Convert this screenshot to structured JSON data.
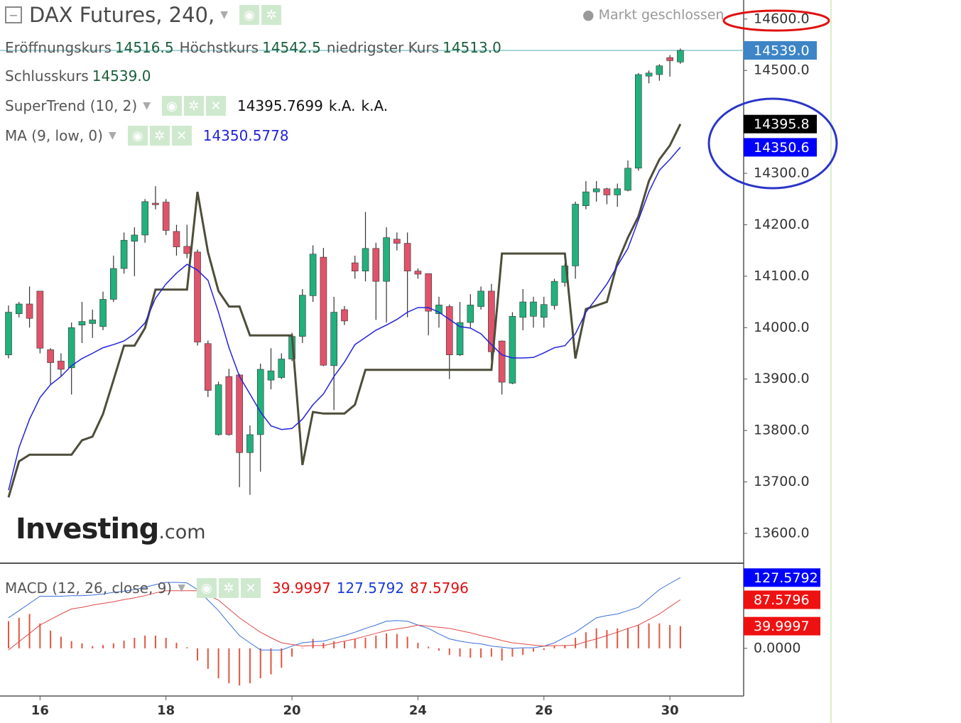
{
  "chart_data": [
    {
      "type": "candlestick",
      "title": "DAX Futures, 240,",
      "status": "Markt geschlossen",
      "ohlc_legend": [
        {
          "label": "Eröffnungskurs",
          "value": "14516.5"
        },
        {
          "label": "Höchstkurs",
          "value": "14542.5"
        },
        {
          "label": "niedrigster Kurs",
          "value": "14513.0"
        },
        {
          "label": "Schlusskurs",
          "value": "14539.0"
        }
      ],
      "up_color": "#22b07d",
      "down_color": "#e0536a",
      "categories": [
        null,
        null,
        null,
        "16",
        null,
        null,
        null,
        null,
        null,
        null,
        null,
        null,
        null,
        null,
        null,
        "18",
        null,
        null,
        null,
        null,
        null,
        null,
        null,
        null,
        null,
        null,
        null,
        "20",
        null,
        null,
        null,
        null,
        null,
        null,
        null,
        null,
        null,
        null,
        null,
        "24",
        null,
        null,
        null,
        null,
        null,
        null,
        null,
        null,
        null,
        null,
        null,
        "26",
        null,
        null,
        null,
        null,
        null,
        null,
        null,
        null,
        null,
        null,
        null,
        "30",
        null
      ],
      "open": [
        13947,
        14027,
        14046,
        14071,
        13957,
        13935,
        13922,
        14005,
        14008,
        14002,
        14055,
        14115,
        14168,
        14180,
        14242,
        14244,
        14187,
        14158,
        14147,
        13969,
        13792,
        13905,
        13908,
        13757,
        13792,
        13898,
        13903,
        13939,
        13983,
        14062,
        14137,
        13926,
        14035,
        14126,
        14110,
        14154,
        14090,
        14172,
        14164,
        14110,
        14105,
        14027,
        14041,
        13947,
        14010,
        14041,
        14071,
        13974,
        13892,
        14020,
        14022,
        14020,
        14043,
        14088,
        14120,
        14237,
        14264,
        14270,
        14258,
        14267,
        14310,
        14489,
        14492,
        14525,
        14516.5
      ],
      "high": [
        14043,
        14050,
        14080,
        14071,
        13960,
        13950,
        14010,
        14050,
        14035,
        14070,
        14140,
        14185,
        14195,
        14250,
        14275,
        14250,
        14200,
        14200,
        14152,
        13975,
        13895,
        13920,
        13910,
        13810,
        13930,
        13960,
        13950,
        13990,
        14075,
        14160,
        14155,
        14060,
        14042,
        14140,
        14225,
        14165,
        14195,
        14185,
        14185,
        14115,
        14105,
        14060,
        14045,
        14050,
        14065,
        14080,
        14085,
        13975,
        14030,
        14075,
        14060,
        14060,
        14095,
        14125,
        14245,
        14285,
        14285,
        14272,
        14280,
        14325,
        14495,
        14500,
        14512,
        14530,
        14542.5
      ],
      "low": [
        13940,
        14020,
        14000,
        13950,
        13890,
        13905,
        13870,
        13970,
        13980,
        13995,
        14050,
        14105,
        14100,
        14165,
        14230,
        14180,
        14140,
        14135,
        13965,
        13865,
        13790,
        13790,
        13690,
        13675,
        13720,
        13880,
        13900,
        13935,
        13970,
        14050,
        13925,
        13840,
        14005,
        14095,
        14090,
        14015,
        14010,
        14150,
        14020,
        14095,
        13985,
        14000,
        13900,
        13945,
        14000,
        14035,
        13935,
        13870,
        13890,
        13995,
        14000,
        14000,
        14035,
        14080,
        14095,
        14230,
        14245,
        14240,
        14235,
        14265,
        14305,
        14475,
        14480,
        14488,
        14513
      ],
      "close": [
        14030,
        14046,
        14018,
        13960,
        13932,
        13919,
        14000,
        14012,
        14015,
        14055,
        14115,
        14170,
        14180,
        14245,
        14239,
        14189,
        14157,
        14144,
        13972,
        13878,
        13889,
        13792,
        13757,
        13792,
        13919,
        13916,
        13939,
        13983,
        14063,
        14143,
        13927,
        14030,
        14013,
        14110,
        14154,
        14090,
        14175,
        14164,
        14110,
        14104,
        14032,
        14044,
        13947,
        14010,
        14044,
        14071,
        13953,
        13894,
        14022,
        14050,
        14050,
        14045,
        14090,
        14120,
        14240,
        14264,
        14270,
        14258,
        14270,
        14310,
        14492,
        14495,
        14509,
        14519,
        14539
      ],
      "series": [
        {
          "name": "SuperTrend (10, 2)",
          "color": "#4d4d3a",
          "legend_values": [
            "14395.7699",
            "k.A.",
            "k.A."
          ],
          "values": [
            13670,
            13740,
            13753,
            13753,
            13753,
            13753,
            13753,
            13781,
            13788,
            13832,
            13898,
            13965,
            13965,
            13999,
            14074,
            14074,
            14074,
            14074,
            14264,
            14147,
            14071,
            14041,
            14041,
            13985,
            13985,
            13985,
            13985,
            13985,
            13733,
            13836,
            13833,
            13833,
            13833,
            13850,
            13918,
            13918,
            13918,
            13918,
            13918,
            13918,
            13918,
            13918,
            13918,
            13918,
            13918,
            13918,
            13918,
            14144,
            14144,
            14144,
            14144,
            14144,
            14144,
            14144,
            13940,
            14036,
            14043,
            14050,
            14126,
            14175,
            14216,
            14285,
            14327,
            14354,
            14395.7699
          ]
        },
        {
          "name": "MA (9, low, 0)",
          "color": "#2323d8",
          "legend_values": [
            "14350.5778"
          ],
          "values": [
            13684,
            13767,
            13822,
            13864,
            13889,
            13905,
            13926,
            13940,
            13950,
            13961,
            13967,
            13974,
            13988,
            14009,
            14057,
            14085,
            14106,
            14123,
            14112,
            14092,
            14030,
            13961,
            13905,
            13871,
            13836,
            13809,
            13802,
            13804,
            13822,
            13850,
            13871,
            13905,
            13933,
            13967,
            13981,
            13995,
            14005,
            14016,
            14030,
            14039,
            14039,
            14030,
            14016,
            14002,
            13999,
            13988,
            13967,
            13947,
            13941,
            13941,
            13942,
            13951,
            13961,
            13965,
            13988,
            14030,
            14057,
            14085,
            14120,
            14154,
            14209,
            14264,
            14306,
            14327,
            14350.5778
          ]
        }
      ],
      "ylim": [
        13542,
        14637
      ],
      "yticks": [
        {
          "value": 13600,
          "label": "13600.0"
        },
        {
          "value": 13700,
          "label": "13700.0"
        },
        {
          "value": 13800,
          "label": "13800.0"
        },
        {
          "value": 13900,
          "label": "13900.0"
        },
        {
          "value": 14000,
          "label": "14000.0"
        },
        {
          "value": 14100,
          "label": "14100.0"
        },
        {
          "value": 14200,
          "label": "14200.0"
        },
        {
          "value": 14300,
          "label": "14300.0"
        },
        {
          "value": 14500,
          "label": "14500.0"
        },
        {
          "value": 14600,
          "label": "14600.0"
        }
      ],
      "badges": [
        {
          "value": 14539,
          "label": "14539.0",
          "color": "#3d85c6",
          "line": true
        },
        {
          "value": 14395.7699,
          "label": "14395.8",
          "color": "#000000"
        },
        {
          "value": 14350.5778,
          "label": "14350.6",
          "color": "#0000ff"
        }
      ],
      "watermark": {
        "brand": "Investing",
        "suffix": ".com"
      }
    },
    {
      "type": "macd",
      "title": "MACD (12, 26, close, 9)",
      "histogram": {
        "color": "#e2553f",
        "legend_value": "39.9997",
        "values": [
          49,
          55,
          62,
          45,
          32,
          21,
          13,
          9,
          4,
          6,
          9,
          14,
          19,
          23,
          23,
          19,
          10,
          2,
          -22,
          -37,
          -54,
          -63,
          -67,
          -63,
          -54,
          -47,
          -35,
          -15,
          1,
          17,
          10,
          13,
          12,
          17,
          19,
          23,
          27,
          26,
          21,
          10,
          3,
          -4,
          -12,
          -15,
          -17,
          -17,
          -15,
          -22,
          -15,
          -12,
          -6,
          -3,
          4,
          6,
          19,
          29,
          36,
          33,
          36,
          36,
          42,
          45,
          45,
          42,
          39.9997
        ]
      },
      "series": [
        {
          "color": "#3a6fd8",
          "legend_value": "127.5792",
          "values": [
            55,
            68,
            81,
            94,
            94,
            94,
            95,
            95,
            96,
            98,
            101,
            103,
            106,
            110,
            115,
            119,
            119,
            118,
            106,
            87,
            68,
            45,
            23,
            10,
            -3,
            -3,
            -3,
            4,
            10,
            12,
            13,
            18,
            23,
            29,
            36,
            42,
            49,
            50,
            49,
            42,
            36,
            26,
            17,
            13,
            10,
            8,
            4,
            2,
            0,
            1,
            1,
            4,
            10,
            20,
            29,
            42,
            55,
            59,
            62,
            68,
            74,
            90,
            106,
            117,
            127.5792
          ]
        },
        {
          "color": "#e04848",
          "legend_value": "87.5796",
          "values": [
            -3,
            12,
            27,
            42,
            52,
            62,
            71,
            74,
            78,
            81,
            84,
            88,
            91,
            95,
            100,
            104,
            104,
            104,
            104,
            96,
            87,
            71,
            55,
            42,
            29,
            19,
            10,
            7,
            4,
            5,
            5,
            9,
            13,
            17,
            22,
            27,
            32,
            35,
            38,
            42,
            40,
            38,
            36,
            32,
            28,
            23,
            19,
            14,
            10,
            8,
            6,
            4,
            5,
            5,
            6,
            12,
            17,
            23,
            29,
            36,
            42,
            52,
            62,
            75,
            87.5796
          ]
        }
      ],
      "ylim": [
        -86,
        151
      ],
      "yticks": [
        {
          "value": 0,
          "label": "0.0000"
        }
      ],
      "badges": [
        {
          "value": 127.5792,
          "label": "127.5792",
          "color": "#0000ff"
        },
        {
          "value": 87.5796,
          "label": "87.5796",
          "color": "#ee1111"
        },
        {
          "value": 39.9997,
          "label": "39.9997",
          "color": "#ee1111"
        }
      ]
    }
  ]
}
